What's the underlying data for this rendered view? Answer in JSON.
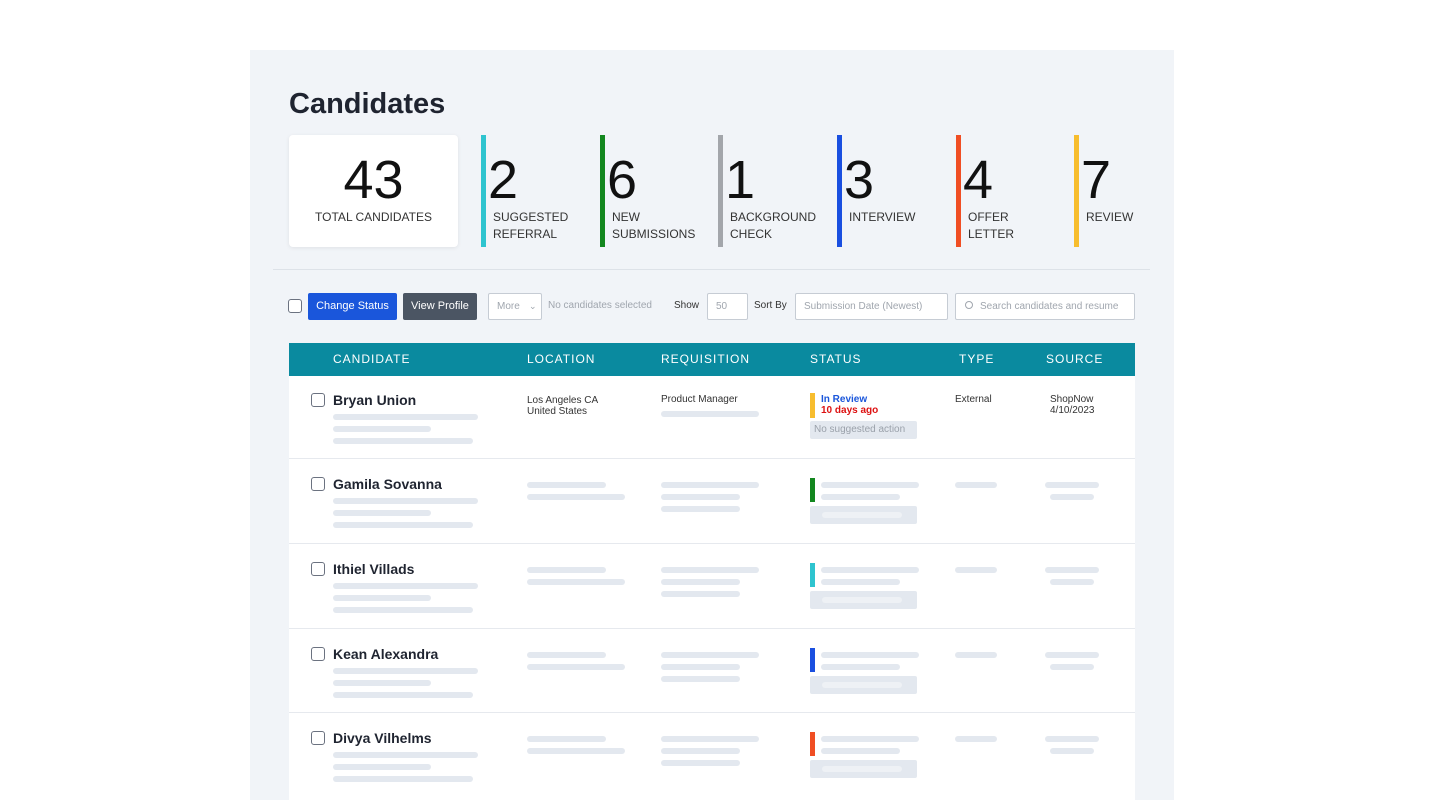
{
  "header": {
    "title": "Candidates"
  },
  "stats": [
    {
      "value": "43",
      "label": [
        "TOTAL CANDIDATES"
      ]
    },
    {
      "value": "2",
      "label": [
        "SUGGESTED",
        "REFERRAL"
      ],
      "color": "#2ec4cf"
    },
    {
      "value": "6",
      "label": [
        "NEW",
        "SUBMISSIONS"
      ],
      "color": "#13871f"
    },
    {
      "value": "1",
      "label": [
        "BACKGROUND",
        "CHECK"
      ],
      "color": "#a3a6ab"
    },
    {
      "value": "3",
      "label": [
        "INTERVIEW"
      ],
      "color": "#1a4fe0"
    },
    {
      "value": "4",
      "label": [
        "OFFER",
        "LETTER"
      ],
      "color": "#f04e23"
    },
    {
      "value": "7",
      "label": [
        "REVIEW"
      ],
      "color": "#f7bd2e"
    }
  ],
  "toolbar": {
    "change_status": "Change Status",
    "view_profile": "View Profile",
    "more": "More",
    "selection": "No candidates selected",
    "show": "Show",
    "page_size": "50",
    "sort_by": "Sort By",
    "sort": "Submission Date (Newest)",
    "search": "Search candidates and resume"
  },
  "table": {
    "columns": [
      "CANDIDATE",
      "LOCATION",
      "REQUISITION",
      "STATUS",
      "TYPE",
      "SOURCE"
    ],
    "rows": [
      {
        "name": "Bryan Union",
        "location": [
          "Los Angeles CA",
          "United States"
        ],
        "requisition": "Product Manager",
        "status": "In Review",
        "status_age": "10 days ago",
        "action": "No suggested action",
        "type": "External",
        "source": [
          "ShopNow",
          "4/10/2023"
        ],
        "color": "#f7bd2e"
      },
      {
        "name": "Gamila Sovanna",
        "color": "#13871f"
      },
      {
        "name": "Ithiel Villads",
        "color": "#2ec4cf"
      },
      {
        "name": "Kean Alexandra",
        "color": "#1a4fe0"
      },
      {
        "name": "Divya Vilhelms",
        "color": "#f04e23"
      }
    ]
  }
}
